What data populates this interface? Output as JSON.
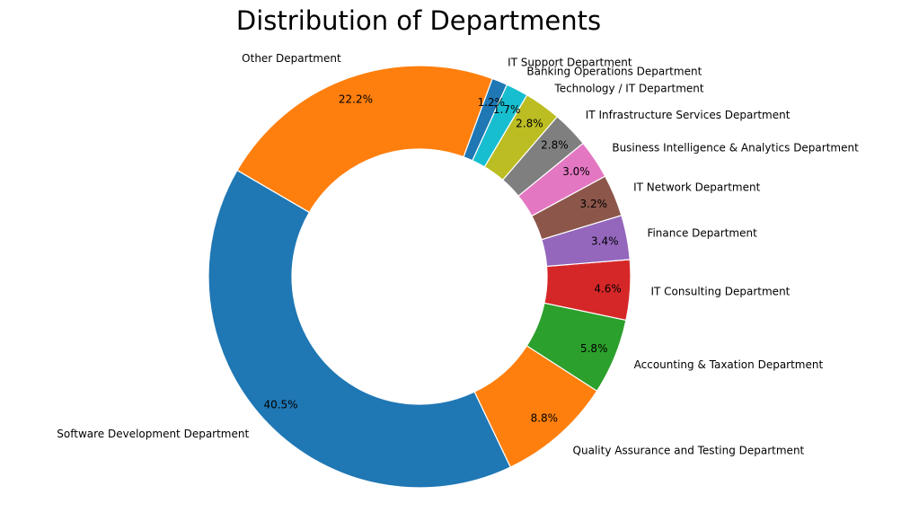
{
  "chart_data": {
    "type": "pie",
    "donut": true,
    "title": "Distribution of Departments",
    "start_angle_deg": 65.5,
    "direction": "counterclockwise",
    "slices": [
      {
        "label": "IT Support Department",
        "percent": 1.2,
        "pct_text": "1.2%",
        "color": "#1f77b4"
      },
      {
        "label": "Other Department",
        "percent": 22.2,
        "pct_text": "22.2%",
        "color": "#ff7f0e"
      },
      {
        "label": "Software Development Department",
        "percent": 40.5,
        "pct_text": "40.5%",
        "color": "#1f77b4"
      },
      {
        "label": "Quality Assurance and Testing Department",
        "percent": 8.8,
        "pct_text": "8.8%",
        "color": "#ff7f0e"
      },
      {
        "label": "Accounting & Taxation Department",
        "percent": 5.8,
        "pct_text": "5.8%",
        "color": "#2ca02c"
      },
      {
        "label": "IT Consulting Department",
        "percent": 4.6,
        "pct_text": "4.6%",
        "color": "#d62728"
      },
      {
        "label": "Finance Department",
        "percent": 3.4,
        "pct_text": "3.4%",
        "color": "#9467bd"
      },
      {
        "label": "IT Network Department",
        "percent": 3.2,
        "pct_text": "3.2%",
        "color": "#8c564b"
      },
      {
        "label": "Business Intelligence & Analytics Department",
        "percent": 3.0,
        "pct_text": "3.0%",
        "color": "#e377c2"
      },
      {
        "label": "IT Infrastructure Services Department",
        "percent": 2.8,
        "pct_text": "2.8%",
        "color": "#7f7f7f"
      },
      {
        "label": "Technology / IT Department",
        "percent": 2.8,
        "pct_text": "2.8%",
        "color": "#bcbd22"
      },
      {
        "label": "Banking Operations Department",
        "percent": 1.7,
        "pct_text": "1.7%",
        "color": "#17becf"
      }
    ]
  }
}
